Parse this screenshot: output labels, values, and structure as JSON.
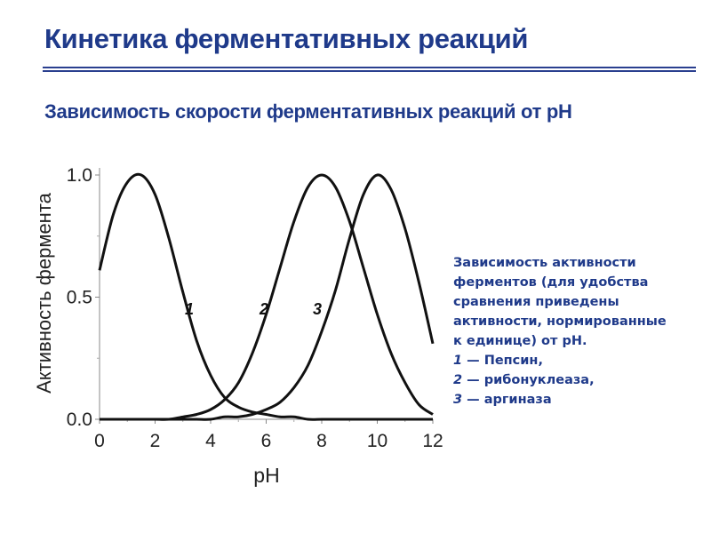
{
  "slide": {
    "title": "Кинетика ферментативных реакций",
    "subtitle": "Зависимость скорости ферментативных реакций от pH"
  },
  "colors": {
    "heading": "#1f3a8a",
    "curve": "#111111"
  },
  "note": {
    "lines": [
      "Зависимость активности",
      "ферментов (для удобства",
      "сравнения приведены",
      "активности, нормированные",
      "к единице) от pH."
    ],
    "items": [
      {
        "num": "1",
        "text": " — Пепсин,"
      },
      {
        "num": "2",
        "text": " — рибонуклеаза,"
      },
      {
        "num": "3",
        "text": " — аргиназа"
      }
    ]
  },
  "chart_data": {
    "type": "line",
    "xlabel": "pH",
    "ylabel": "Активность фермента",
    "xlim": [
      0,
      12
    ],
    "ylim": [
      0,
      1.0
    ],
    "xticks": [
      "0",
      "2",
      "4",
      "6",
      "8",
      "10",
      "12"
    ],
    "yticks": [
      "0.0",
      "0.5",
      "1.0"
    ],
    "grid": false,
    "series": [
      {
        "name": "1",
        "x": [
          0,
          0.5,
          1,
          1.5,
          2,
          2.5,
          3,
          3.5,
          4,
          4.5,
          5,
          5.5,
          6,
          6.5,
          7,
          7.5,
          8,
          8.5,
          9,
          9.5,
          10,
          10.5,
          11,
          11.5,
          12
        ],
        "values": [
          0.61,
          0.84,
          0.97,
          1.0,
          0.92,
          0.74,
          0.52,
          0.32,
          0.18,
          0.09,
          0.05,
          0.03,
          0.02,
          0.01,
          0.01,
          0.0,
          0.0,
          0.0,
          0.0,
          0.0,
          0.0,
          0.0,
          0.0,
          0.0,
          0.0
        ]
      },
      {
        "name": "2",
        "x": [
          0,
          0.5,
          1,
          1.5,
          2,
          2.5,
          3,
          3.5,
          4,
          4.5,
          5,
          5.5,
          6,
          6.5,
          7,
          7.5,
          8,
          8.5,
          9,
          9.5,
          10,
          10.5,
          11,
          11.5,
          12
        ],
        "values": [
          0.0,
          0.0,
          0.0,
          0.0,
          0.0,
          0.0,
          0.01,
          0.02,
          0.04,
          0.08,
          0.15,
          0.27,
          0.43,
          0.62,
          0.81,
          0.95,
          1.0,
          0.95,
          0.81,
          0.62,
          0.43,
          0.27,
          0.15,
          0.06,
          0.02
        ]
      },
      {
        "name": "3",
        "x": [
          0,
          0.5,
          1,
          1.5,
          2,
          2.5,
          3,
          3.5,
          4,
          4.5,
          5,
          5.5,
          6,
          6.5,
          7,
          7.5,
          8,
          8.5,
          9,
          9.5,
          10,
          10.5,
          11,
          11.5,
          12
        ],
        "values": [
          0.0,
          0.0,
          0.0,
          0.0,
          0.0,
          0.0,
          0.0,
          0.0,
          0.0,
          0.01,
          0.01,
          0.02,
          0.04,
          0.07,
          0.13,
          0.22,
          0.36,
          0.53,
          0.74,
          0.92,
          1.0,
          0.94,
          0.78,
          0.56,
          0.31
        ]
      }
    ],
    "annotations": [
      {
        "text": "1",
        "series": "1"
      },
      {
        "text": "2",
        "series": "2"
      },
      {
        "text": "3",
        "series": "3"
      }
    ]
  }
}
